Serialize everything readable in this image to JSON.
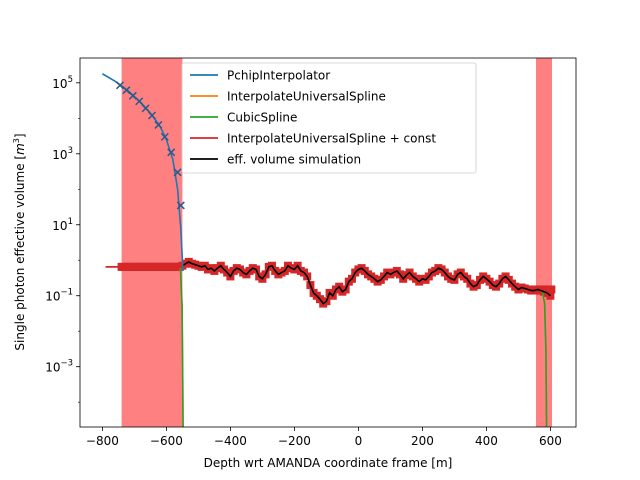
{
  "chart_data": {
    "type": "line",
    "title": "",
    "xlabel": "Depth wrt AMANDA coordinate frame [m]",
    "ylabel_main": "Single photon effective volume [",
    "ylabel_unit_base": "m",
    "ylabel_unit_exp": "3",
    "ylabel_close": "]",
    "y_scale": "log",
    "xlim": [
      -870,
      680
    ],
    "ylim": [
      2e-05,
      500000
    ],
    "x_ticks": [
      {
        "value": -800,
        "label": "−800"
      },
      {
        "value": -600,
        "label": "−600"
      },
      {
        "value": -400,
        "label": "−400"
      },
      {
        "value": -200,
        "label": "−200"
      },
      {
        "value": 0,
        "label": "0"
      },
      {
        "value": 200,
        "label": "200"
      },
      {
        "value": 400,
        "label": "400"
      },
      {
        "value": 600,
        "label": "600"
      }
    ],
    "y_ticks": [
      {
        "value": 0.001,
        "base": "10",
        "exp": "−3"
      },
      {
        "value": 0.1,
        "base": "10",
        "exp": "−1"
      },
      {
        "value": 10,
        "base": "10",
        "exp": "1"
      },
      {
        "value": 1000,
        "base": "10",
        "exp": "3"
      },
      {
        "value": 100000,
        "base": "10",
        "exp": "5"
      }
    ],
    "shaded_regions": [
      {
        "x0": -740,
        "x1": -550,
        "color": "#ff8080"
      },
      {
        "x0": 555,
        "x1": 605,
        "color": "#ff8080"
      }
    ],
    "legend_position": "top-center",
    "series": [
      {
        "name": "PchipInterpolator",
        "color": "#1f77b4"
      },
      {
        "name": "InterpolateUniversalSpline",
        "color": "#ff7f0e"
      },
      {
        "name": "CubicSpline",
        "color": "#2ca02c"
      },
      {
        "name": "InterpolateUniversalSpline + const",
        "color": "#d62728"
      },
      {
        "name": "eff. volume simulation",
        "color": "#000000"
      }
    ],
    "pchip_curve": {
      "x": [
        -800,
        -760,
        -720,
        -680,
        -650,
        -620,
        -600,
        -580,
        -565,
        -555,
        -550,
        -548
      ],
      "y": [
        180000,
        110000,
        60000,
        28000,
        14000,
        6000,
        2500,
        700,
        100,
        8,
        1,
        0.5
      ]
    },
    "pchip_markers": {
      "x": [
        -745,
        -725,
        -705,
        -685,
        -665,
        -645,
        -625,
        -605,
        -585,
        -565,
        -555
      ],
      "y": [
        85000,
        62000,
        43000,
        30000,
        19000,
        12000,
        6500,
        3000,
        1100,
        300,
        35
      ]
    },
    "const_line": {
      "x": [
        -790,
        -550
      ],
      "y": 0.65
    },
    "sim_curve": {
      "x": [
        -550,
        -540,
        -530,
        -520,
        -510,
        -500,
        -490,
        -480,
        -470,
        -460,
        -450,
        -440,
        -430,
        -420,
        -410,
        -400,
        -390,
        -380,
        -370,
        -360,
        -350,
        -340,
        -330,
        -320,
        -310,
        -300,
        -290,
        -280,
        -270,
        -260,
        -250,
        -240,
        -230,
        -220,
        -210,
        -200,
        -190,
        -180,
        -170,
        -160,
        -150,
        -140,
        -130,
        -120,
        -110,
        -100,
        -90,
        -80,
        -70,
        -60,
        -50,
        -40,
        -30,
        -20,
        -10,
        0,
        10,
        20,
        30,
        40,
        50,
        60,
        70,
        80,
        90,
        100,
        110,
        120,
        130,
        140,
        150,
        160,
        170,
        180,
        190,
        200,
        210,
        220,
        230,
        240,
        250,
        260,
        270,
        280,
        290,
        300,
        310,
        320,
        330,
        340,
        350,
        360,
        370,
        380,
        390,
        400,
        410,
        420,
        430,
        440,
        450,
        460,
        470,
        480,
        490,
        500,
        510,
        520,
        530,
        540,
        550,
        560,
        570,
        580,
        590,
        600
      ],
      "y": [
        0.7,
        0.8,
        0.9,
        0.8,
        0.75,
        0.7,
        0.65,
        0.7,
        0.55,
        0.6,
        0.5,
        0.6,
        0.7,
        0.55,
        0.45,
        0.35,
        0.5,
        0.6,
        0.55,
        0.45,
        0.4,
        0.5,
        0.6,
        0.55,
        0.35,
        0.3,
        0.4,
        0.65,
        0.7,
        0.5,
        0.4,
        0.45,
        0.5,
        0.7,
        0.6,
        0.55,
        0.7,
        0.5,
        0.45,
        0.35,
        0.2,
        0.12,
        0.1,
        0.08,
        0.06,
        0.07,
        0.12,
        0.1,
        0.15,
        0.18,
        0.13,
        0.15,
        0.25,
        0.3,
        0.45,
        0.55,
        0.6,
        0.5,
        0.4,
        0.35,
        0.3,
        0.25,
        0.28,
        0.35,
        0.45,
        0.4,
        0.45,
        0.5,
        0.4,
        0.3,
        0.38,
        0.45,
        0.35,
        0.3,
        0.25,
        0.3,
        0.28,
        0.35,
        0.45,
        0.5,
        0.6,
        0.55,
        0.45,
        0.35,
        0.3,
        0.28,
        0.4,
        0.45,
        0.35,
        0.3,
        0.22,
        0.18,
        0.2,
        0.28,
        0.35,
        0.3,
        0.25,
        0.2,
        0.18,
        0.22,
        0.3,
        0.35,
        0.28,
        0.22,
        0.18,
        0.15,
        0.17,
        0.16,
        0.15,
        0.14,
        0.14,
        0.15,
        0.14,
        0.13,
        0.12,
        0.1
      ]
    },
    "cubic_drop": {
      "left": {
        "x": [
          -556,
          -551,
          -549,
          -548
        ],
        "y": [
          0.6,
          0.05,
          0.0005,
          2e-05
        ]
      },
      "right": {
        "x": [
          575,
          582,
          586,
          588
        ],
        "y": [
          0.13,
          0.06,
          0.003,
          2e-05
        ]
      }
    },
    "right_const": {
      "x": [
        555,
        605
      ],
      "y": 0.15
    }
  }
}
